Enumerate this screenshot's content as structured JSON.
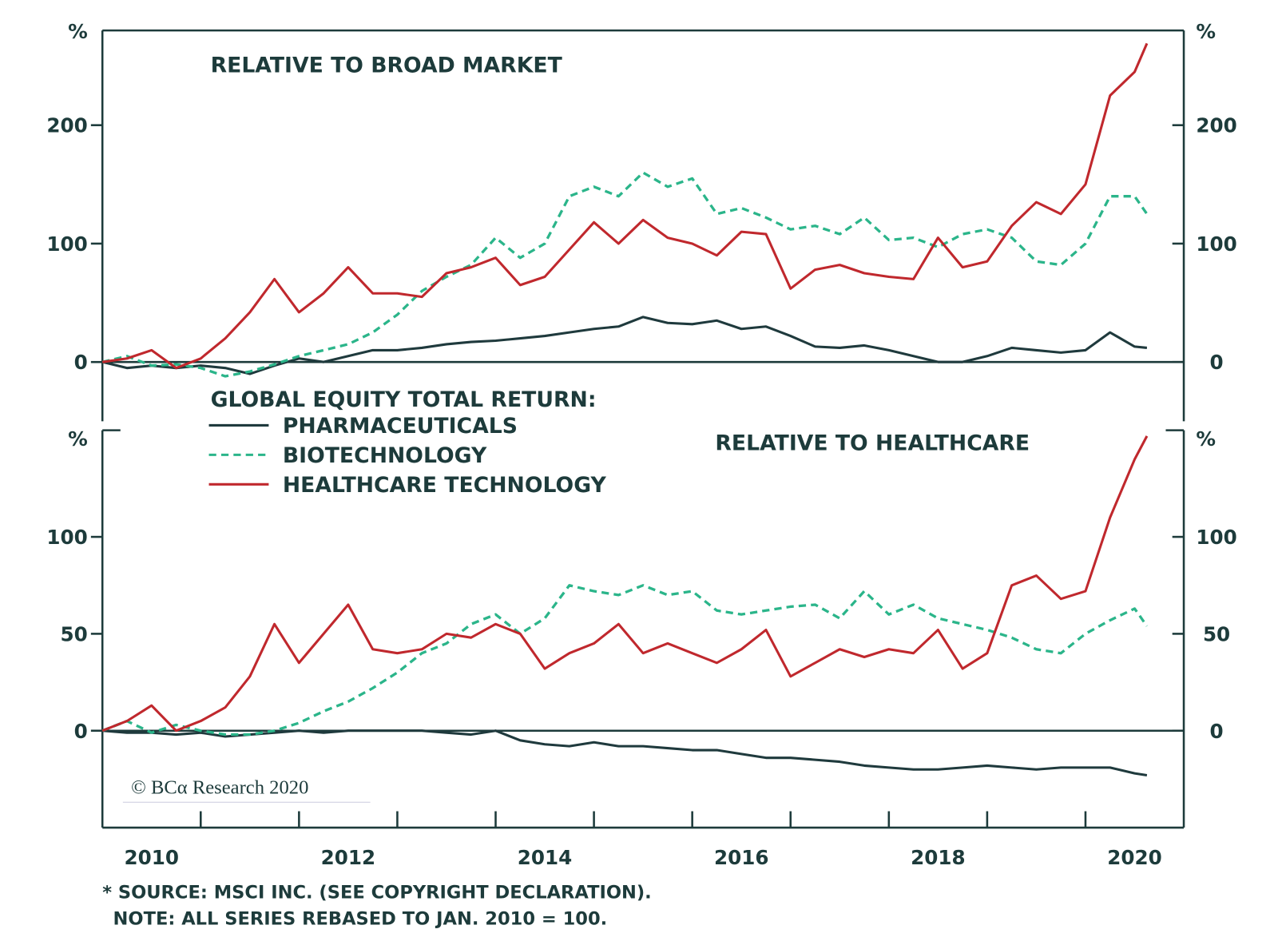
{
  "chart_data": [
    {
      "type": "line",
      "title": "RELATIVE TO BROAD MARKET",
      "ylabel": "%",
      "right_axis": true,
      "zero_line": true,
      "xlim": [
        2010,
        2021
      ],
      "ylim": [
        -50,
        280
      ],
      "yticks": [
        0,
        100,
        200
      ],
      "x": [
        2010,
        2010.25,
        2010.5,
        2010.75,
        2011,
        2011.25,
        2011.5,
        2011.75,
        2012,
        2012.25,
        2012.5,
        2012.75,
        2013,
        2013.25,
        2013.5,
        2013.75,
        2014,
        2014.25,
        2014.5,
        2014.75,
        2015,
        2015.25,
        2015.5,
        2015.75,
        2016,
        2016.25,
        2016.5,
        2016.75,
        2017,
        2017.25,
        2017.5,
        2017.75,
        2018,
        2018.25,
        2018.5,
        2018.75,
        2019,
        2019.25,
        2019.5,
        2019.75,
        2020,
        2020.25,
        2020.5,
        2020.625
      ],
      "series": [
        {
          "name": "PHARMACEUTICALS",
          "color": "#1f3a3d",
          "dash": false,
          "values": [
            0,
            -5,
            -3,
            -5,
            -3,
            -5,
            -10,
            -3,
            3,
            0,
            5,
            10,
            10,
            12,
            15,
            17,
            18,
            20,
            22,
            25,
            28,
            30,
            38,
            33,
            32,
            35,
            28,
            30,
            22,
            13,
            12,
            14,
            10,
            5,
            0,
            0,
            5,
            12,
            10,
            8,
            10,
            25,
            13,
            12
          ]
        },
        {
          "name": "BIOTECHNOLOGY",
          "color": "#2bb58a",
          "dash": true,
          "values": [
            0,
            5,
            -3,
            -2,
            -5,
            -12,
            -8,
            -2,
            5,
            10,
            15,
            25,
            40,
            60,
            72,
            82,
            105,
            88,
            100,
            140,
            148,
            140,
            160,
            148,
            155,
            125,
            130,
            122,
            112,
            115,
            108,
            122,
            103,
            105,
            97,
            108,
            112,
            105,
            85,
            82,
            100,
            140,
            140,
            125
          ]
        },
        {
          "name": "HEALTHCARE TECHNOLOGY",
          "color": "#c0282d",
          "dash": false,
          "values": [
            0,
            3,
            10,
            -5,
            3,
            20,
            42,
            70,
            42,
            58,
            80,
            58,
            58,
            55,
            75,
            80,
            88,
            65,
            72,
            95,
            118,
            100,
            120,
            105,
            100,
            90,
            110,
            108,
            62,
            78,
            82,
            75,
            72,
            70,
            105,
            80,
            85,
            115,
            135,
            125,
            150,
            225,
            245,
            269
          ]
        }
      ]
    },
    {
      "type": "line",
      "title": "RELATIVE TO HEALTHCARE",
      "ylabel": "%",
      "right_axis": true,
      "zero_line": true,
      "xlim": [
        2010,
        2021
      ],
      "ylim": [
        -50,
        155
      ],
      "yticks": [
        0,
        50,
        100
      ],
      "xticks": [
        {
          "value": 2010.5,
          "label": "2010"
        },
        {
          "value": 2012.5,
          "label": "2012"
        },
        {
          "value": 2014.5,
          "label": "2014"
        },
        {
          "value": 2016.5,
          "label": "2016"
        },
        {
          "value": 2018.5,
          "label": "2018"
        },
        {
          "value": 2020.5,
          "label": "2020"
        }
      ],
      "xminor_ticks": [
        2011,
        2012,
        2013,
        2014,
        2015,
        2016,
        2017,
        2018,
        2019,
        2020
      ],
      "x": [
        2010,
        2010.25,
        2010.5,
        2010.75,
        2011,
        2011.25,
        2011.5,
        2011.75,
        2012,
        2012.25,
        2012.5,
        2012.75,
        2013,
        2013.25,
        2013.5,
        2013.75,
        2014,
        2014.25,
        2014.5,
        2014.75,
        2015,
        2015.25,
        2015.5,
        2015.75,
        2016,
        2016.25,
        2016.5,
        2016.75,
        2017,
        2017.25,
        2017.5,
        2017.75,
        2018,
        2018.25,
        2018.5,
        2018.75,
        2019,
        2019.25,
        2019.5,
        2019.75,
        2020,
        2020.25,
        2020.5,
        2020.625
      ],
      "series": [
        {
          "color": "#1f3a3d",
          "dash": false,
          "values": [
            0,
            -1,
            -1,
            -2,
            -1,
            -3,
            -2,
            -1,
            0,
            -1,
            0,
            0,
            0,
            0,
            -1,
            -2,
            0,
            -5,
            -7,
            -8,
            -6,
            -8,
            -8,
            -9,
            -10,
            -10,
            -12,
            -14,
            -14,
            -15,
            -16,
            -18,
            -19,
            -20,
            -20,
            -19,
            -18,
            -19,
            -20,
            -19,
            -19,
            -19,
            -22,
            -23
          ]
        },
        {
          "color": "#2bb58a",
          "dash": true,
          "values": [
            0,
            5,
            -1,
            3,
            0,
            -2,
            -2,
            0,
            4,
            10,
            15,
            22,
            30,
            40,
            45,
            55,
            60,
            50,
            58,
            75,
            72,
            70,
            75,
            70,
            72,
            62,
            60,
            62,
            64,
            65,
            58,
            72,
            60,
            65,
            58,
            55,
            52,
            48,
            42,
            40,
            50,
            57,
            63,
            54
          ]
        },
        {
          "color": "#c0282d",
          "dash": false,
          "values": [
            0,
            5,
            13,
            0,
            5,
            12,
            28,
            55,
            35,
            50,
            65,
            42,
            40,
            42,
            50,
            48,
            55,
            50,
            32,
            40,
            45,
            55,
            40,
            45,
            40,
            35,
            42,
            52,
            28,
            35,
            42,
            38,
            42,
            40,
            52,
            32,
            40,
            75,
            80,
            68,
            72,
            110,
            140,
            152
          ]
        }
      ]
    }
  ],
  "legend_title": "GLOBAL EQUITY TOTAL RETURN:",
  "copyright": "© BCα Research 2020",
  "source": "* SOURCE: MSCI INC. (SEE COPYRIGHT DECLARATION).",
  "note": "NOTE: ALL SERIES REBASED TO JAN. 2010 = 100."
}
